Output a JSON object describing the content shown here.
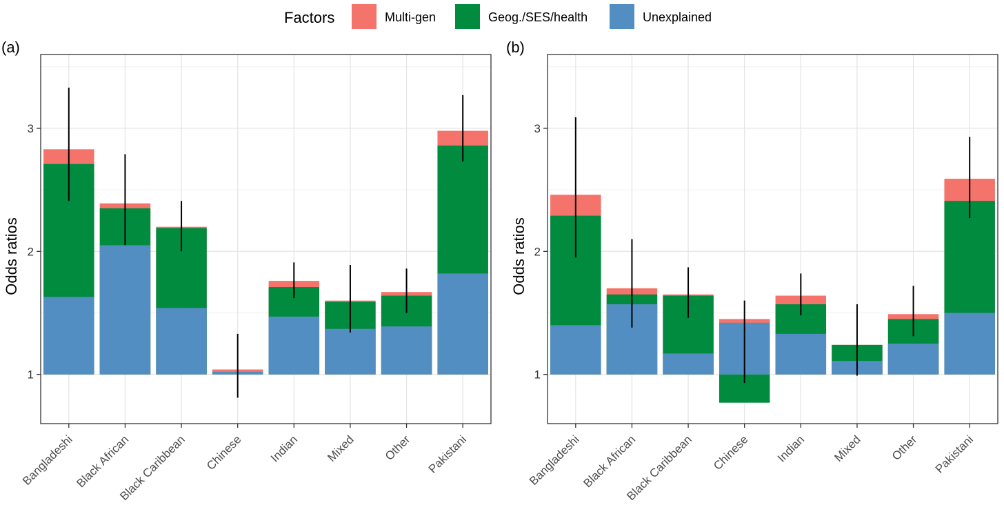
{
  "legend": {
    "title": "Factors",
    "items": [
      {
        "key": "multigen",
        "label": "Multi-gen",
        "color": "#F4736B"
      },
      {
        "key": "geog",
        "label": "Geog./SES/health",
        "color": "#008B3F"
      },
      {
        "key": "unexplained",
        "label": "Unexplained",
        "color": "#528EC1"
      }
    ]
  },
  "chart_data": [
    {
      "type": "bar",
      "panel": "(a)",
      "ylabel": "Odds ratios",
      "xlabel": "",
      "ylim": [
        0.6,
        3.6
      ],
      "baseline": 1,
      "yticks": [
        1,
        2,
        3
      ],
      "grid": true,
      "categories": [
        "Bangladeshi",
        "Black African",
        "Black Caribbean",
        "Chinese",
        "Indian",
        "Mixed",
        "Other",
        "Pakistani"
      ],
      "series": [
        {
          "name": "Unexplained",
          "values": [
            1.63,
            2.05,
            1.54,
            1.02,
            1.47,
            1.37,
            1.39,
            1.82
          ]
        },
        {
          "name": "Geog./SES/health",
          "values": [
            2.71,
            2.35,
            2.19,
            1.02,
            1.71,
            1.59,
            1.64,
            2.86
          ]
        },
        {
          "name": "Multi-gen",
          "values": [
            2.83,
            2.39,
            2.2,
            1.04,
            1.76,
            1.6,
            1.67,
            2.98
          ]
        }
      ],
      "error_bars": [
        {
          "low": 2.41,
          "high": 3.33
        },
        {
          "low": 2.05,
          "high": 2.79
        },
        {
          "low": 2.0,
          "high": 2.41
        },
        {
          "low": 0.81,
          "high": 1.33
        },
        {
          "low": 1.62,
          "high": 1.91
        },
        {
          "low": 1.34,
          "high": 1.89
        },
        {
          "low": 1.5,
          "high": 1.86
        },
        {
          "low": 2.73,
          "high": 3.27
        }
      ]
    },
    {
      "type": "bar",
      "panel": "(b)",
      "ylabel": "Odds ratios",
      "xlabel": "",
      "ylim": [
        0.6,
        3.6
      ],
      "baseline": 1,
      "yticks": [
        1,
        2,
        3
      ],
      "grid": true,
      "categories": [
        "Bangladeshi",
        "Black African",
        "Black Caribbean",
        "Chinese",
        "Indian",
        "Mixed",
        "Other",
        "Pakistani"
      ],
      "series": [
        {
          "name": "Unexplained",
          "values": [
            1.4,
            1.57,
            1.17,
            1.42,
            1.33,
            1.11,
            1.25,
            1.5
          ]
        },
        {
          "name": "Geog./SES/health",
          "values": [
            2.29,
            1.65,
            1.64,
            0.77,
            1.57,
            1.24,
            1.45,
            2.41
          ]
        },
        {
          "name": "Multi-gen",
          "values": [
            2.46,
            1.7,
            1.65,
            1.45,
            1.64,
            1.24,
            1.49,
            2.59
          ]
        }
      ],
      "error_bars": [
        {
          "low": 1.95,
          "high": 3.09
        },
        {
          "low": 1.38,
          "high": 2.1
        },
        {
          "low": 1.46,
          "high": 1.87
        },
        {
          "low": 0.93,
          "high": 1.6
        },
        {
          "low": 1.48,
          "high": 1.82
        },
        {
          "low": 0.99,
          "high": 1.57
        },
        {
          "low": 1.31,
          "high": 1.72
        },
        {
          "low": 2.27,
          "high": 2.93
        }
      ]
    }
  ]
}
